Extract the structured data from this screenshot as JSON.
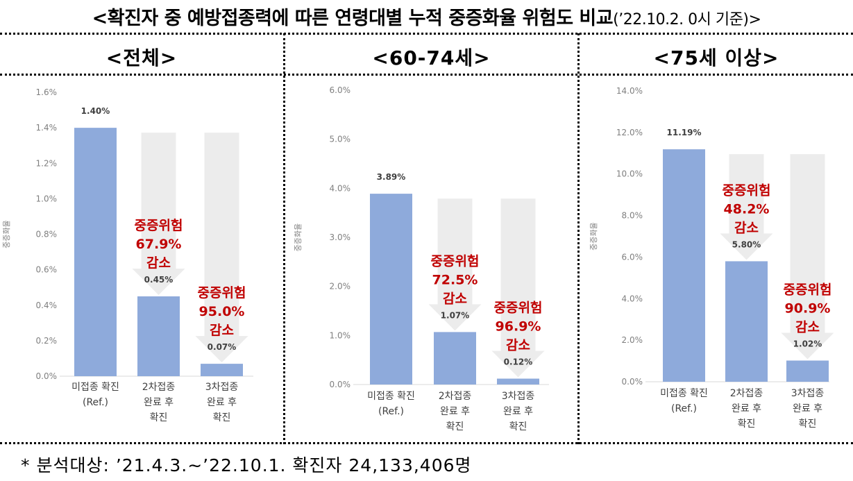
{
  "title": {
    "main": "<확진자 중 예방접종력에 따른 연령대별 누적 중증화율 위험도 비교",
    "sub": "(’22.10.2. 0시 기준)>"
  },
  "footnote": "* 분석대상: ’21.4.3.∼’22.10.1. 확진자 24,133,406명",
  "colors": {
    "bar": "#8eaadb",
    "arrow": "#ececec",
    "annotation": "#c00000",
    "axis_text": "#7f7f7f"
  },
  "chart_data": [
    {
      "type": "bar",
      "panel_title": "<전체>",
      "ylabel": "중증화율",
      "ylim": [
        0,
        1.6
      ],
      "yticks": [
        "0.0%",
        "0.2%",
        "0.4%",
        "0.6%",
        "0.8%",
        "1.0%",
        "1.2%",
        "1.4%",
        "1.6%"
      ],
      "categories": [
        [
          "미접종 확진",
          "(Ref.)"
        ],
        [
          "2차접종",
          "완료 후",
          "확진"
        ],
        [
          "3차접종",
          "완료 후",
          "확진"
        ]
      ],
      "values": [
        1.4,
        0.45,
        0.07
      ],
      "value_labels": [
        "1.40%",
        "0.45%",
        "0.07%"
      ],
      "reductions": [
        null,
        [
          "중증위험",
          "67.9%",
          "감소"
        ],
        [
          "중증위험",
          "95.0%",
          "감소"
        ]
      ]
    },
    {
      "type": "bar",
      "panel_title": "<60-74세>",
      "ylabel": "중증화율",
      "ylim": [
        0,
        6.0
      ],
      "yticks": [
        "0.0%",
        "1.0%",
        "2.0%",
        "3.0%",
        "4.0%",
        "5.0%",
        "6.0%"
      ],
      "categories": [
        [
          "미접종 확진",
          "(Ref.)"
        ],
        [
          "2차접종",
          "완료 후",
          "확진"
        ],
        [
          "3차접종",
          "완료 후",
          "확진"
        ]
      ],
      "values": [
        3.89,
        1.07,
        0.12
      ],
      "value_labels": [
        "3.89%",
        "1.07%",
        "0.12%"
      ],
      "reductions": [
        null,
        [
          "중증위험",
          "72.5%",
          "감소"
        ],
        [
          "중증위험",
          "96.9%",
          "감소"
        ]
      ]
    },
    {
      "type": "bar",
      "panel_title": "<75세 이상>",
      "ylabel": "중증화율",
      "ylim": [
        0,
        14.0
      ],
      "yticks": [
        "0.0%",
        "2.0%",
        "4.0%",
        "6.0%",
        "8.0%",
        "10.0%",
        "12.0%",
        "14.0%"
      ],
      "categories": [
        [
          "미접종 확진",
          "(Ref.)"
        ],
        [
          "2차접종",
          "완료 후",
          "확진"
        ],
        [
          "3차접종",
          "완료 후",
          "확진"
        ]
      ],
      "values": [
        11.19,
        5.8,
        1.02
      ],
      "value_labels": [
        "11.19%",
        "5.80%",
        "1.02%"
      ],
      "reductions": [
        null,
        [
          "중증위험",
          "48.2%",
          "감소"
        ],
        [
          "중증위험",
          "90.9%",
          "감소"
        ]
      ]
    }
  ]
}
